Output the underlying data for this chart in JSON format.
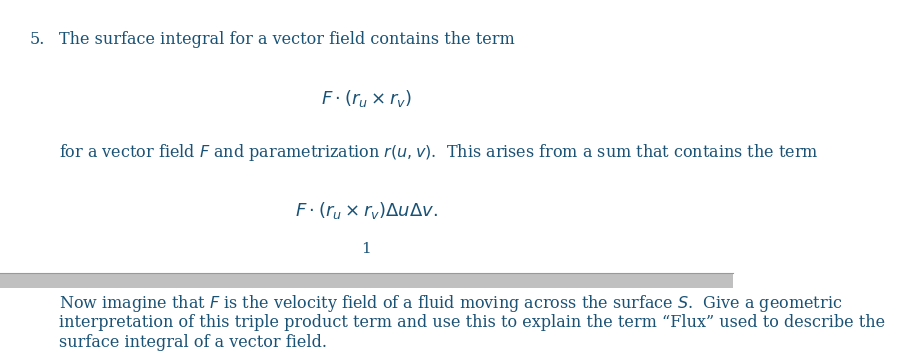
{
  "background_color": "#ffffff",
  "text_color": "#1a5276",
  "line1_number": "5.",
  "line1_text": "The surface integral for a vector field contains the term",
  "formula1": "$F \\cdot (r_u \\times r_v)$",
  "line2_text": "for a vector field $F$ and parametrization $r(u, v)$.  This arises from a sum that contains the term",
  "formula2": "$F \\cdot (r_u \\times r_v)\\Delta u \\Delta v.$",
  "page_number": "1",
  "bottom_text_line1": "Now imagine that $F$ is the velocity field of a fluid moving across the surface $S$.  Give a geometric",
  "bottom_text_line2": "interpretation of this triple product term and use this to explain the term “Flux” used to describe the",
  "bottom_text_line3": "surface integral of a vector field.",
  "separator_band_color": "#c0c0c0",
  "separator_line_color": "#999999",
  "font_size_main": 11.5,
  "font_size_formula": 13,
  "font_size_page": 11
}
